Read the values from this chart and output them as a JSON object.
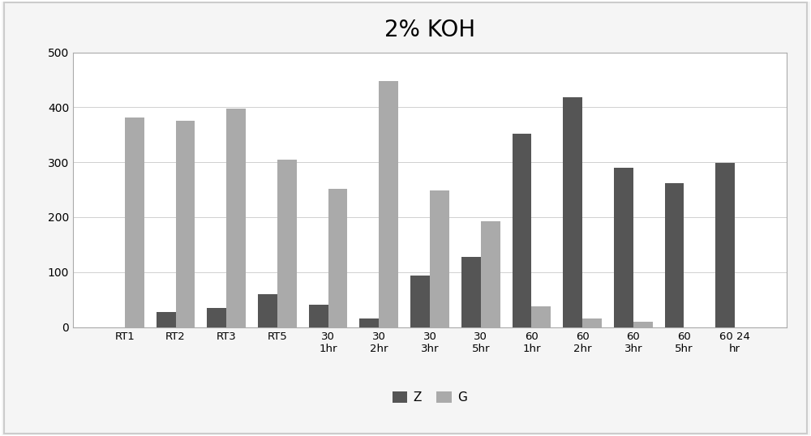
{
  "title": "2% KOH",
  "categories": [
    "RT1",
    "RT2",
    "RT3",
    "RT5",
    "30\n1hr",
    "30\n2hr",
    "30\n3hr",
    "30\n5hr",
    "60\n1hr",
    "60\n2hr",
    "60\n3hr",
    "60\n5hr",
    "60 24\nhr"
  ],
  "Z_values": [
    0,
    27,
    35,
    60,
    40,
    15,
    93,
    128,
    352,
    418,
    290,
    262,
    298
  ],
  "G_values": [
    382,
    375,
    398,
    305,
    252,
    448,
    248,
    192,
    38,
    15,
    10,
    0,
    0
  ],
  "Z_color": "#555555",
  "G_color": "#aaaaaa",
  "ylim": [
    0,
    500
  ],
  "yticks": [
    0,
    100,
    200,
    300,
    400,
    500
  ],
  "bar_width": 0.38,
  "title_fontsize": 20,
  "legend_labels": [
    "Z",
    "G"
  ],
  "background_color": "#f5f5f5",
  "plot_bg_color": "#ffffff",
  "grid_color": "#d0d0d0",
  "border_color": "#aaaaaa",
  "outer_border_color": "#cccccc"
}
